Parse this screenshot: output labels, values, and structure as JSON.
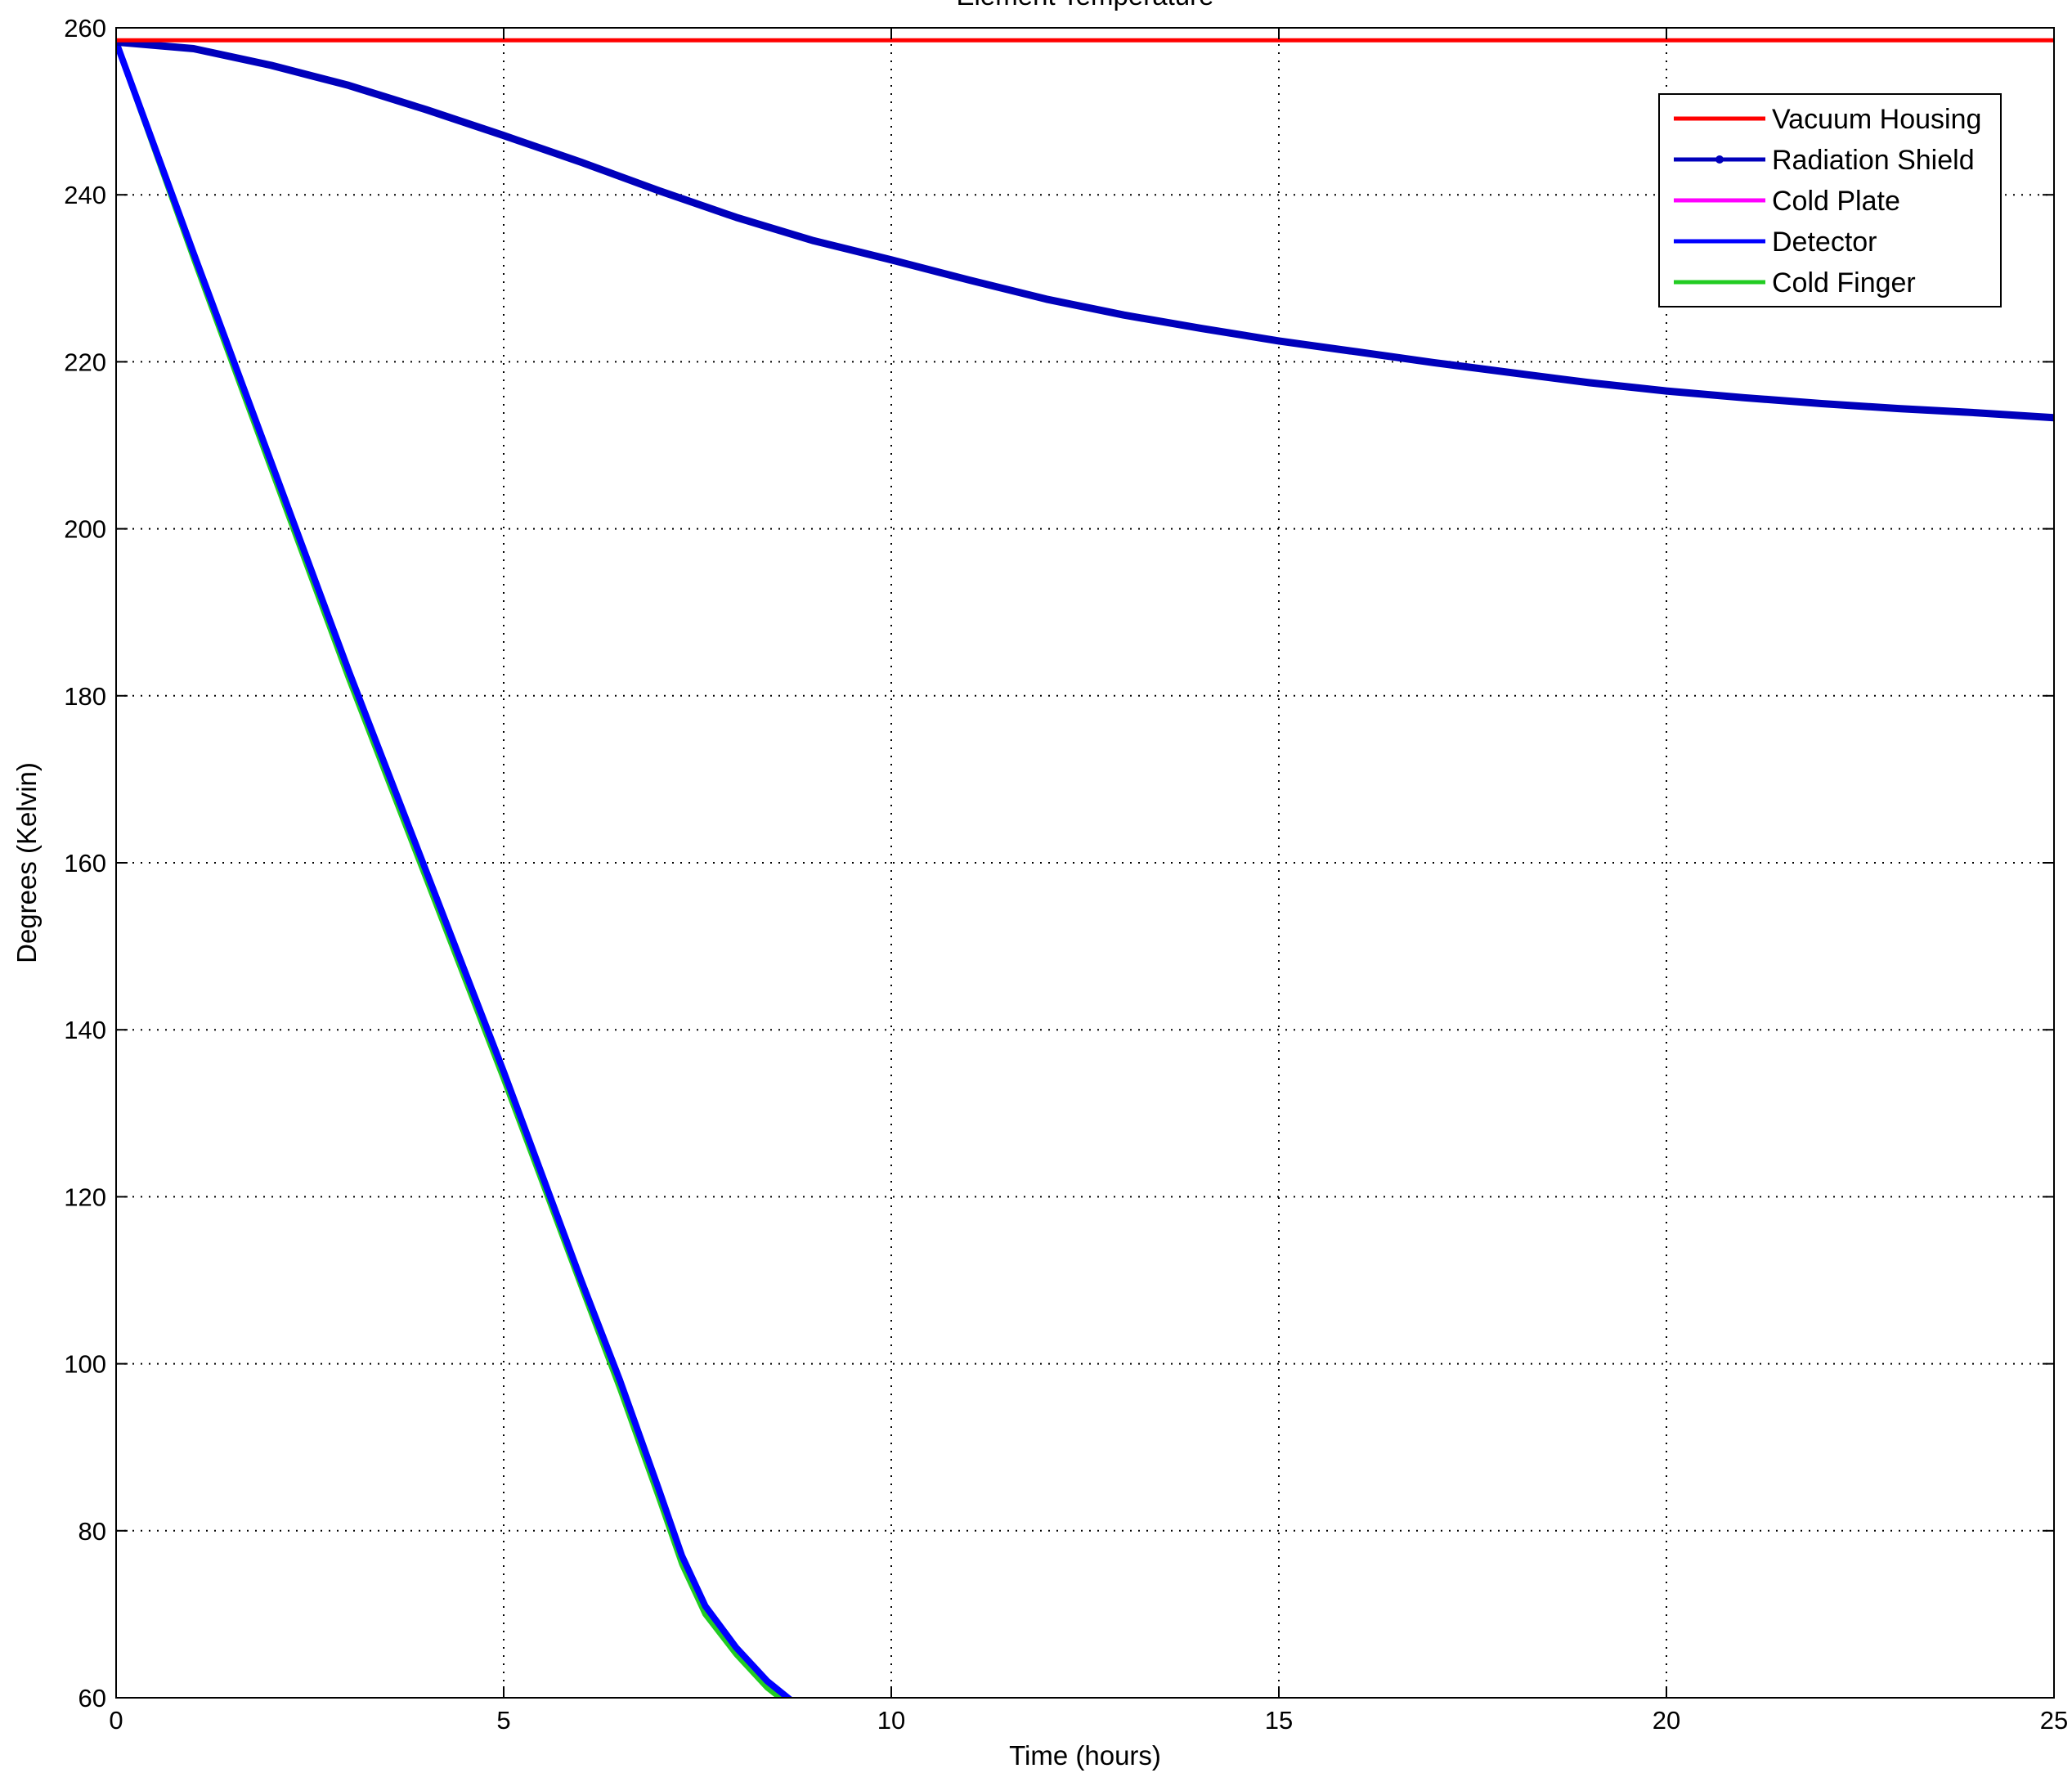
{
  "chart_data": {
    "type": "line",
    "title": "Element Temperature",
    "xlabel": "Time (hours)",
    "ylabel": "Degrees (Kelvin)",
    "xlim": [
      0,
      25
    ],
    "ylim": [
      60,
      260
    ],
    "x_ticks": [
      0,
      5,
      10,
      15,
      20,
      25
    ],
    "y_ticks": [
      60,
      80,
      100,
      120,
      140,
      160,
      180,
      200,
      220,
      240,
      260
    ],
    "grid": true,
    "legend_position": "top-right",
    "series": [
      {
        "name": "Vacuum Housing",
        "color": "#ff0000",
        "marker": "none",
        "x": [
          0,
          25
        ],
        "y": [
          258.5,
          258.5
        ]
      },
      {
        "name": "Radiation Shield",
        "color": "#0000bb",
        "marker": "dot",
        "x": [
          0,
          1,
          2,
          3,
          4,
          5,
          6,
          7,
          8,
          9,
          10,
          11,
          12,
          13,
          14,
          15,
          16,
          17,
          18,
          19,
          20,
          21,
          22,
          23,
          24,
          25
        ],
        "y": [
          258.3,
          257.5,
          255.5,
          253.1,
          250.2,
          247.1,
          243.9,
          240.5,
          237.3,
          234.5,
          232.2,
          229.8,
          227.5,
          225.6,
          224.0,
          222.5,
          221.2,
          219.9,
          218.7,
          217.5,
          216.5,
          215.7,
          215.0,
          214.4,
          213.9,
          213.3
        ]
      },
      {
        "name": "Cold Plate",
        "color": "#ff00ff",
        "marker": "none",
        "x": [
          0,
          1,
          2,
          3,
          4,
          5,
          6,
          6.5,
          7,
          7.3,
          7.6,
          8,
          8.4,
          8.8,
          9.2,
          10,
          15,
          20,
          25
        ],
        "y": [
          258.3,
          233,
          208,
          183,
          159,
          135,
          110,
          98,
          85,
          77,
          71,
          66,
          62,
          59,
          57.5,
          57.2,
          57.2,
          57.2,
          57.2
        ]
      },
      {
        "name": "Detector",
        "color": "#0000ff",
        "marker": "none",
        "x": [
          0,
          1,
          2,
          3,
          4,
          5,
          6,
          6.5,
          7,
          7.3,
          7.6,
          8,
          8.4,
          8.8,
          9.2,
          10,
          15,
          20,
          25
        ],
        "y": [
          258.3,
          233,
          208,
          183,
          159,
          135,
          110,
          98,
          85,
          77,
          71,
          66,
          62,
          59,
          57.5,
          57.2,
          57.2,
          57.2,
          57.2
        ]
      },
      {
        "name": "Cold Finger",
        "color": "#22cc22",
        "marker": "none",
        "x": [
          0,
          1,
          2,
          3,
          4,
          5,
          6,
          6.5,
          7,
          7.3,
          7.6,
          8,
          8.4,
          8.8,
          9.2,
          10,
          15,
          20,
          25
        ],
        "y": [
          258.3,
          232.4,
          207.2,
          182.1,
          158.1,
          134.1,
          109.3,
          97.0,
          84.0,
          76.0,
          70.0,
          65.2,
          61.2,
          58.3,
          56.8,
          56.6,
          56.6,
          56.6,
          56.6
        ]
      }
    ]
  }
}
